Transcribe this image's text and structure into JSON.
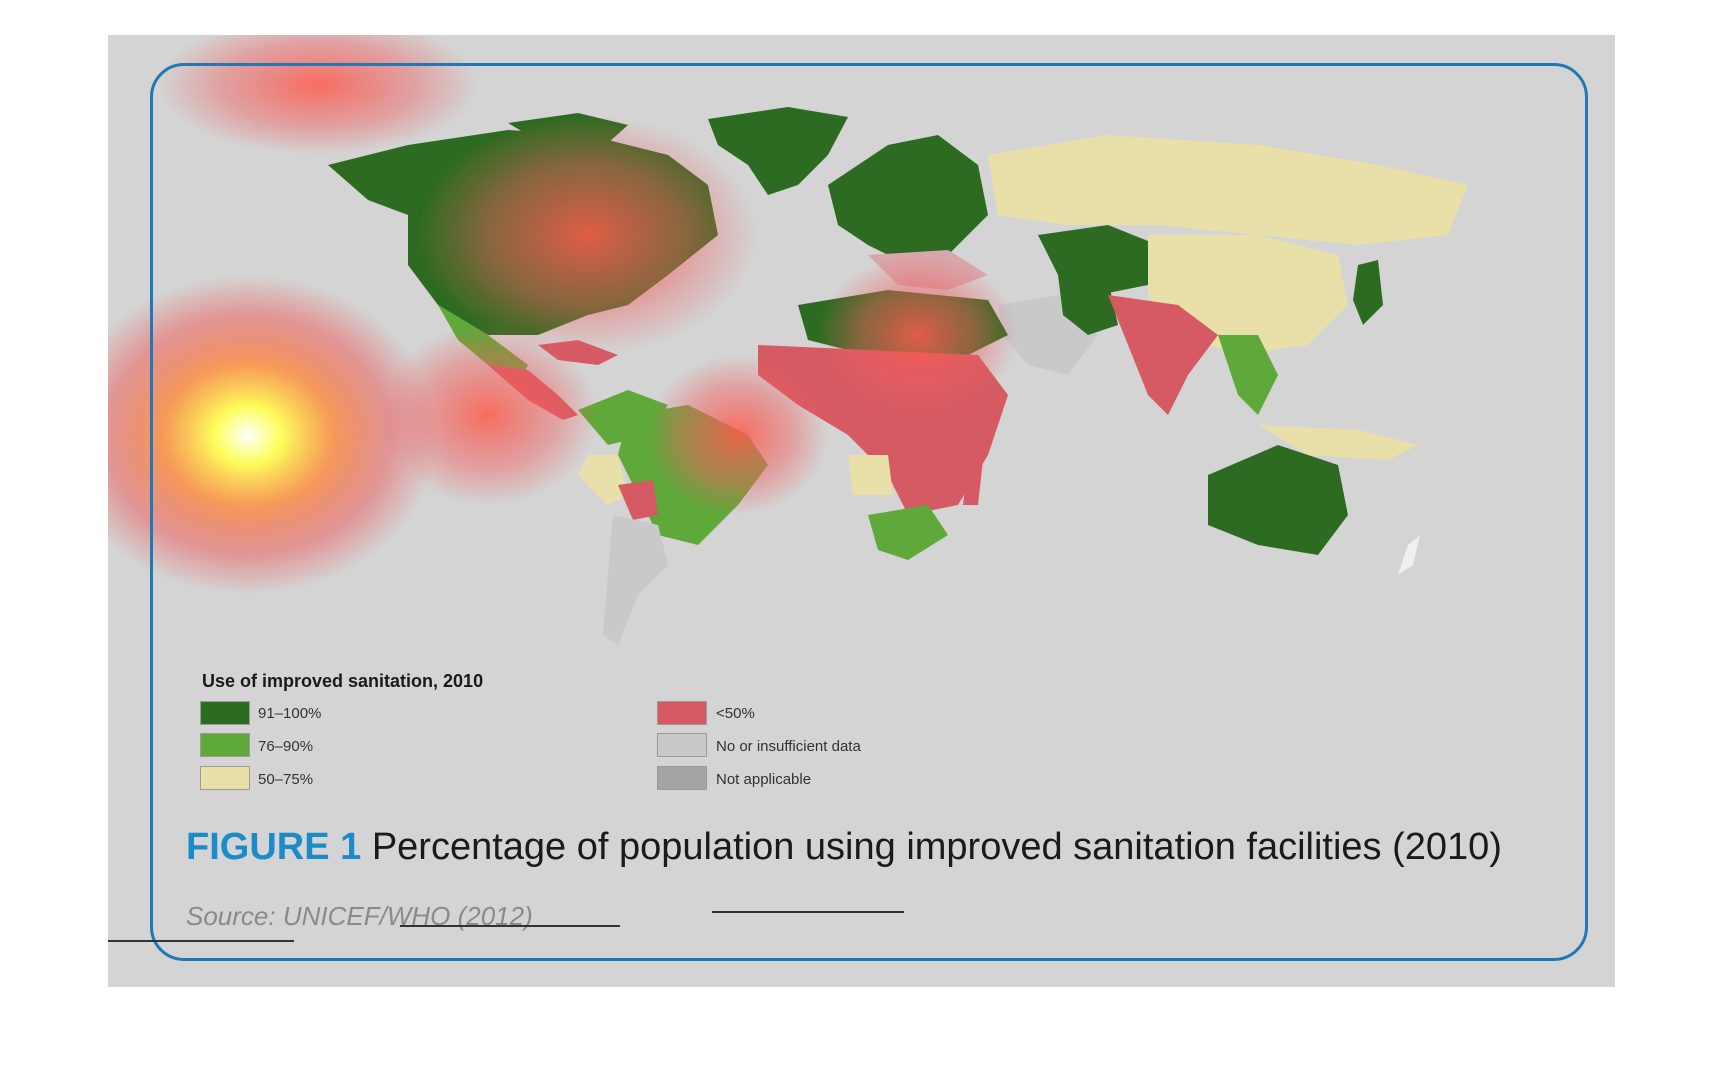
{
  "legend": {
    "title": "Use of improved sanitation, 2010",
    "items": [
      {
        "label": "91–100%",
        "color": "#2e6b22"
      },
      {
        "label": "76–90%",
        "color": "#5fa83a"
      },
      {
        "label": "50–75%",
        "color": "#e8e0a8"
      },
      {
        "label": "<50%",
        "color": "#d65a63"
      },
      {
        "label": "No or insufficient data",
        "color": "#c9c9c9"
      },
      {
        "label": "Not applicable",
        "color": "#a4a4a4"
      }
    ]
  },
  "caption": {
    "figure_label": "FIGURE 1",
    "text": "Percentage of population using improved sanitation facilities (2010)"
  },
  "source": "Source: UNICEF/WHO (2012)",
  "colors": {
    "panel": "#d4d4d4",
    "frame": "#2079b6",
    "ocean": "#d4d4d4"
  }
}
